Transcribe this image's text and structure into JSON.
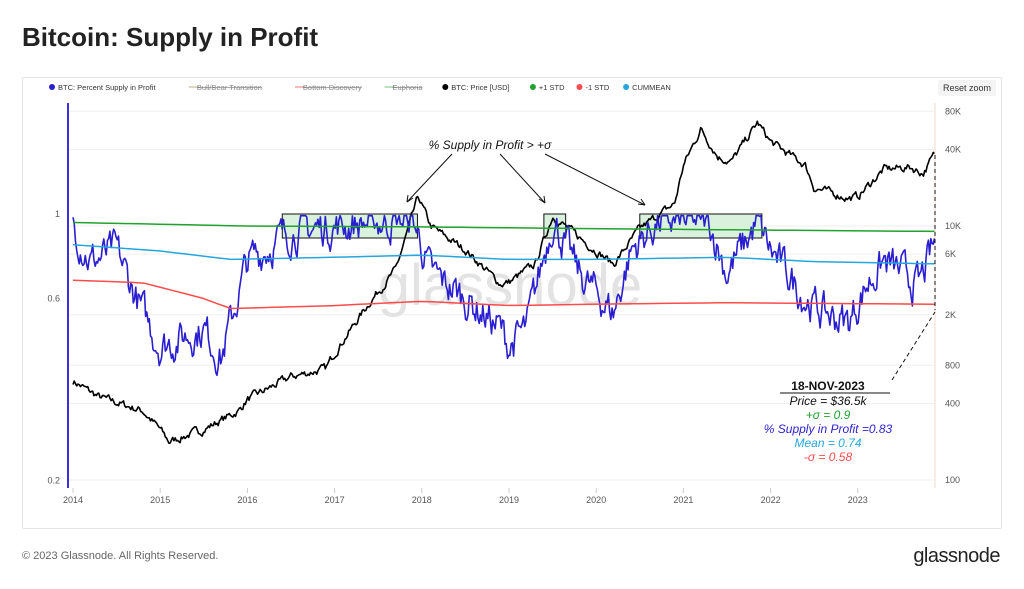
{
  "title": "Bitcoin: Supply in Profit",
  "footer": "© 2023 Glassnode. All Rights Reserved.",
  "brand": "glassnode",
  "watermark": "glassnode",
  "reset_zoom": "Reset zoom",
  "chart_data": {
    "type": "line",
    "legend": [
      {
        "label": "BTC: Percent Supply in Profit",
        "color": "#2a1fd0",
        "struck": false
      },
      {
        "label": "Bull/Bear Transition",
        "color": "#d8c9a8",
        "struck": true
      },
      {
        "label": "Bottom Discovery",
        "color": "#f2a3a3",
        "struck": true
      },
      {
        "label": "Euphoria",
        "color": "#9fd6a5",
        "struck": true
      },
      {
        "label": "BTC: Price [USD]",
        "color": "#000000",
        "struck": false
      },
      {
        "label": "+1 STD",
        "color": "#1fa32d",
        "struck": false
      },
      {
        "label": "-1 STD",
        "color": "#ff4b4b",
        "struck": false
      },
      {
        "label": "CUMMEAN",
        "color": "#25a6dc",
        "struck": false
      }
    ],
    "x_ticks": [
      "2014",
      "2015",
      "2016",
      "2017",
      "2018",
      "2019",
      "2020",
      "2021",
      "2022",
      "2023"
    ],
    "y_left": {
      "scale": "log",
      "ticks": [
        "0.2",
        "0.6",
        "1"
      ],
      "range": [
        0.2,
        1.35
      ]
    },
    "y_right": {
      "scale": "log",
      "ticks": [
        "100",
        "400",
        "800",
        "2K",
        "6K",
        "10K",
        "40K",
        "80K"
      ],
      "range": [
        100,
        110000
      ]
    },
    "xlim": [
      2014,
      2023.95
    ],
    "series": [
      {
        "name": "BTC: Price [USD]",
        "axis": "right",
        "points": [
          [
            2014.0,
            600
          ],
          [
            2014.3,
            450
          ],
          [
            2014.8,
            350
          ],
          [
            2015.0,
            250
          ],
          [
            2015.1,
            200
          ],
          [
            2015.5,
            250
          ],
          [
            2015.9,
            350
          ],
          [
            2016.0,
            430
          ],
          [
            2016.5,
            650
          ],
          [
            2016.9,
            750
          ],
          [
            2017.0,
            1000
          ],
          [
            2017.4,
            2500
          ],
          [
            2017.7,
            4500
          ],
          [
            2017.96,
            17000
          ],
          [
            2018.1,
            10000
          ],
          [
            2018.3,
            8000
          ],
          [
            2018.5,
            6500
          ],
          [
            2018.9,
            3500
          ],
          [
            2019.0,
            3600
          ],
          [
            2019.3,
            5000
          ],
          [
            2019.5,
            12000
          ],
          [
            2019.9,
            7200
          ],
          [
            2020.2,
            5000
          ],
          [
            2020.5,
            9500
          ],
          [
            2020.9,
            15000
          ],
          [
            2021.0,
            30000
          ],
          [
            2021.2,
            58000
          ],
          [
            2021.4,
            35000
          ],
          [
            2021.55,
            32000
          ],
          [
            2021.85,
            65000
          ],
          [
            2022.0,
            46000
          ],
          [
            2022.4,
            30000
          ],
          [
            2022.5,
            20000
          ],
          [
            2022.9,
            16500
          ],
          [
            2023.0,
            17000
          ],
          [
            2023.3,
            28000
          ],
          [
            2023.6,
            29000
          ],
          [
            2023.75,
            26000
          ],
          [
            2023.88,
            36500
          ]
        ]
      },
      {
        "name": "BTC: Percent Supply in Profit",
        "axis": "left",
        "points": [
          [
            2014.0,
            0.95
          ],
          [
            2014.2,
            0.75
          ],
          [
            2014.5,
            0.8
          ],
          [
            2014.8,
            0.55
          ],
          [
            2015.0,
            0.45
          ],
          [
            2015.5,
            0.5
          ],
          [
            2015.7,
            0.42
          ],
          [
            2016.0,
            0.75
          ],
          [
            2016.5,
            0.9
          ],
          [
            2017.0,
            0.93
          ],
          [
            2017.9,
            0.97
          ],
          [
            2018.1,
            0.7
          ],
          [
            2018.5,
            0.6
          ],
          [
            2018.9,
            0.5
          ],
          [
            2019.0,
            0.45
          ],
          [
            2019.2,
            0.5
          ],
          [
            2019.5,
            0.97
          ],
          [
            2019.8,
            0.7
          ],
          [
            2020.2,
            0.55
          ],
          [
            2020.4,
            0.8
          ],
          [
            2020.7,
            0.95
          ],
          [
            2021.3,
            0.95
          ],
          [
            2021.5,
            0.7
          ],
          [
            2021.85,
            0.95
          ],
          [
            2022.0,
            0.8
          ],
          [
            2022.4,
            0.6
          ],
          [
            2022.6,
            0.55
          ],
          [
            2022.9,
            0.52
          ],
          [
            2023.1,
            0.65
          ],
          [
            2023.3,
            0.75
          ],
          [
            2023.7,
            0.65
          ],
          [
            2023.88,
            0.83
          ]
        ]
      },
      {
        "name": "+1 STD",
        "axis": "left",
        "points": [
          [
            2014.0,
            0.95
          ],
          [
            2016.0,
            0.93
          ],
          [
            2018.0,
            0.925
          ],
          [
            2020.0,
            0.915
          ],
          [
            2023.88,
            0.9
          ]
        ]
      },
      {
        "name": "CUMMEAN",
        "axis": "left",
        "points": [
          [
            2014.0,
            0.83
          ],
          [
            2015.0,
            0.8
          ],
          [
            2015.8,
            0.76
          ],
          [
            2017.0,
            0.77
          ],
          [
            2018.0,
            0.78
          ],
          [
            2019.0,
            0.76
          ],
          [
            2020.0,
            0.76
          ],
          [
            2021.5,
            0.77
          ],
          [
            2022.5,
            0.75
          ],
          [
            2023.88,
            0.74
          ]
        ]
      },
      {
        "name": "-1 STD",
        "axis": "left",
        "points": [
          [
            2014.0,
            0.67
          ],
          [
            2014.8,
            0.66
          ],
          [
            2015.5,
            0.6
          ],
          [
            2015.8,
            0.565
          ],
          [
            2017.0,
            0.575
          ],
          [
            2018.0,
            0.59
          ],
          [
            2019.0,
            0.575
          ],
          [
            2020.0,
            0.58
          ],
          [
            2021.5,
            0.585
          ],
          [
            2023.88,
            0.58
          ]
        ]
      }
    ],
    "highlight_regions": [
      [
        2016.4,
        2017.95
      ],
      [
        2019.4,
        2019.65
      ],
      [
        2020.5,
        2021.9
      ]
    ],
    "highlight_range": [
      0.865,
      1.0
    ],
    "annotation": "% Supply in Profit > +σ",
    "callout": {
      "date": "18-NOV-2023",
      "price": "Price = $36.5k",
      "plus_sigma": "+σ = 0.9",
      "supply": "% Supply in Profit =0.83",
      "mean": "Mean = 0.74",
      "minus_sigma": "-σ = 0.58"
    }
  }
}
